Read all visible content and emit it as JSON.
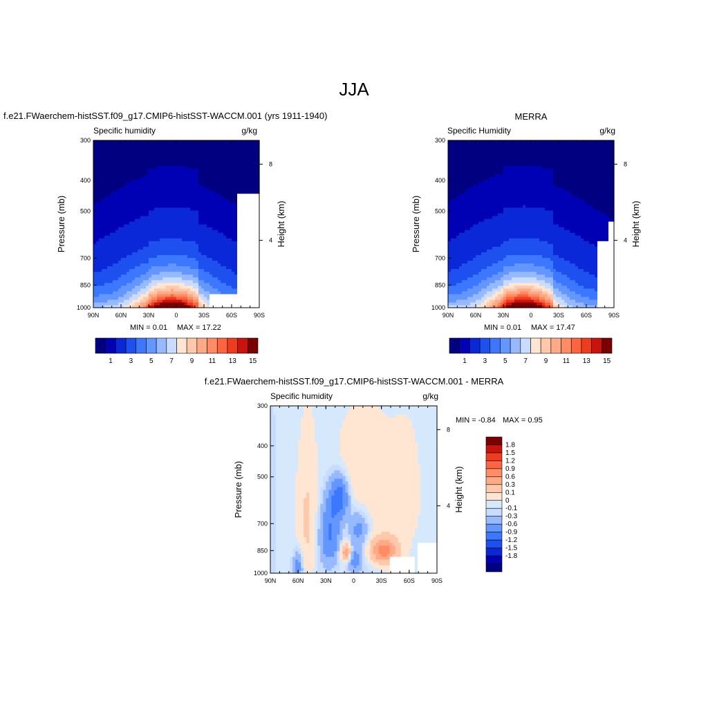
{
  "title": "JJA",
  "colors": {
    "cb_seq": [
      "#000080",
      "#0000b4",
      "#0a28d8",
      "#1e50f0",
      "#3c78ff",
      "#6496ff",
      "#96b9ff",
      "#c8dcff",
      "#ffe6d2",
      "#ffc8aa",
      "#ffaa87",
      "#ff8c64",
      "#ff6440",
      "#f03c1e",
      "#c8140a",
      "#7d0000"
    ],
    "cb_diff": [
      "#000080",
      "#0000b4",
      "#0a28d8",
      "#1e50f0",
      "#3c78ff",
      "#6496ff",
      "#96b9ff",
      "#c8dcff",
      "#d6e8fc",
      "#ffe6d2",
      "#ffc8aa",
      "#ffaa87",
      "#ff8c64",
      "#ff6440",
      "#f03c1e",
      "#c8140a",
      "#7d0000"
    ]
  },
  "chart_data": [
    {
      "type": "heatmap",
      "title": "f.e21.FWaerchem-histSST.f09_g17.CMIP6-histSST-WACCM.001 (yrs 1911-1940)",
      "left_string": "Specific humidity",
      "right_string": "g/kg",
      "xlabel": "",
      "ylabel": "Pressure (mb)",
      "right_ylabel": "Height (km)",
      "x_ticks": [
        "90N",
        "60N",
        "30N",
        "0",
        "30S",
        "60S",
        "90S"
      ],
      "y_ticks": [
        "300",
        "400",
        "500",
        "700",
        "850",
        "1000"
      ],
      "right_ticks": [
        "8",
        "4"
      ],
      "xlim": [
        90,
        -90
      ],
      "ylim": [
        1000,
        300
      ],
      "y_scale": "log",
      "min_text": "MIN =   0.01",
      "max_text": "MAX =  17.22",
      "min": 0.01,
      "max": 17.22,
      "peak_lat": 5,
      "colorbar_labels": [
        "1",
        "3",
        "5",
        "7",
        "9",
        "11",
        "13",
        "15"
      ],
      "colorbar_levels": [
        0.5,
        1,
        2,
        3,
        4,
        5,
        6,
        7,
        8,
        9,
        10,
        11,
        12,
        13,
        14,
        15
      ]
    },
    {
      "type": "heatmap",
      "title": "MERRA",
      "left_string": "Specific Humidity",
      "right_string": "g/kg",
      "xlabel": "",
      "ylabel": "Pressure (mb)",
      "right_ylabel": "Height (km)",
      "x_ticks": [
        "90N",
        "60N",
        "30N",
        "0",
        "30S",
        "60S",
        "90S"
      ],
      "y_ticks": [
        "300",
        "400",
        "500",
        "700",
        "850",
        "1000"
      ],
      "right_ticks": [
        "8",
        "4"
      ],
      "xlim": [
        90,
        -90
      ],
      "ylim": [
        1000,
        300
      ],
      "y_scale": "log",
      "min_text": "MIN =   0.01",
      "max_text": "MAX =  17.47",
      "min": 0.01,
      "max": 17.47,
      "peak_lat": 8,
      "colorbar_labels": [
        "1",
        "3",
        "5",
        "7",
        "9",
        "11",
        "13",
        "15"
      ],
      "colorbar_levels": [
        0.5,
        1,
        2,
        3,
        4,
        5,
        6,
        7,
        8,
        9,
        10,
        11,
        12,
        13,
        14,
        15
      ]
    },
    {
      "type": "heatmap",
      "title": "f.e21.FWaerchem-histSST.f09_g17.CMIP6-histSST-WACCM.001 - MERRA",
      "left_string": "Specific humidity",
      "right_string": "g/kg",
      "xlabel": "",
      "ylabel": "Pressure (mb)",
      "right_ylabel": "Height (km)",
      "x_ticks": [
        "90N",
        "60N",
        "30N",
        "0",
        "30S",
        "60S",
        "90S"
      ],
      "y_ticks": [
        "300",
        "400",
        "500",
        "700",
        "850",
        "1000"
      ],
      "right_ticks": [
        "8",
        "4"
      ],
      "xlim": [
        90,
        -90
      ],
      "ylim": [
        1000,
        300
      ],
      "y_scale": "log",
      "min_text": "MIN =  -0.84",
      "max_text": "MAX =   0.95",
      "min": -0.84,
      "max": 0.95,
      "colorbar_labels": [
        "1.8",
        "1.5",
        "1.2",
        "0.9",
        "0.6",
        "0.3",
        "0.1",
        "0",
        "-0.1",
        "-0.3",
        "-0.6",
        "-0.9",
        "-1.2",
        "-1.5",
        "-1.8"
      ],
      "colorbar_levels": [
        -1.8,
        -1.5,
        -1.2,
        -0.9,
        -0.6,
        -0.3,
        -0.1,
        0,
        0.1,
        0.3,
        0.6,
        0.9,
        1.2,
        1.5,
        1.8
      ]
    }
  ]
}
